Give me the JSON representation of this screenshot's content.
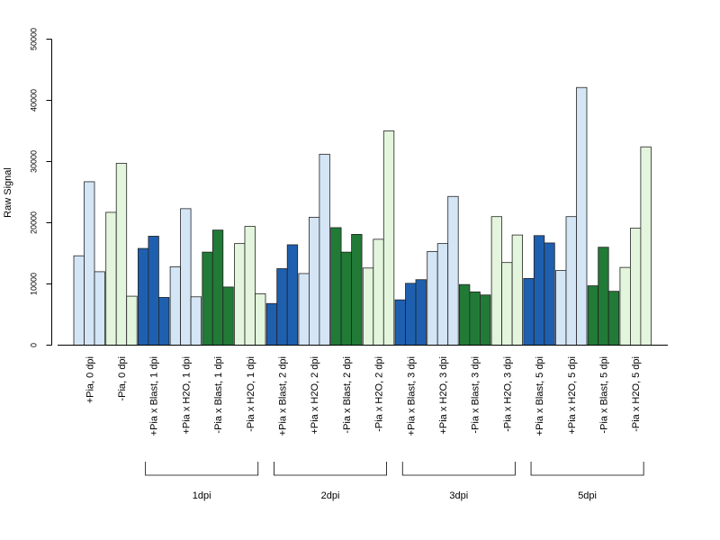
{
  "chart_data": {
    "type": "bar",
    "ylabel": "Raw Signal",
    "ylim": [
      0,
      50000
    ],
    "yticks": [
      "0",
      "10000",
      "20000",
      "30000",
      "40000",
      "50000"
    ],
    "grid": false,
    "categories": [
      "+Pia, 0 dpi",
      "-Pia, 0 dpi",
      "+Pia x Blast, 1 dpi",
      "+Pia x H2O, 1 dpi",
      "-Pia x Blast, 1 dpi",
      "-Pia x H2O, 1 dpi",
      "+Pia x Blast, 2 dpi",
      "+Pia x H2O, 2 dpi",
      "-Pia x Blast, 2 dpi",
      "-Pia x H2O, 2 dpi",
      "+Pia x Blast, 3 dpi",
      "+Pia x H2O, 3 dpi",
      "-Pia x Blast, 3 dpi",
      "-Pia x H2O, 3 dpi",
      "+Pia x Blast, 5 dpi",
      "+Pia x H2O, 5 dpi",
      "-Pia x Blast, 5 dpi",
      "-Pia x H2O, 5 dpi"
    ],
    "category_colors": [
      "#d4e5f5",
      "#e3f5dc",
      "#1f5faf",
      "#d4e5f5",
      "#217a36",
      "#e3f5dc",
      "#1f5faf",
      "#d4e5f5",
      "#217a36",
      "#e3f5dc",
      "#1f5faf",
      "#d4e5f5",
      "#217a36",
      "#e3f5dc",
      "#1f5faf",
      "#d4e5f5",
      "#217a36",
      "#e3f5dc"
    ],
    "values": [
      [
        14600,
        26700,
        12000
      ],
      [
        21700,
        29700,
        8000
      ],
      [
        15800,
        17800,
        7800
      ],
      [
        12800,
        22300,
        7900
      ],
      [
        15200,
        18800,
        9500
      ],
      [
        16600,
        19400,
        8400
      ],
      [
        6800,
        12500,
        16400
      ],
      [
        11700,
        20900,
        31200
      ],
      [
        19200,
        15200,
        18100
      ],
      [
        12600,
        17300,
        35000
      ],
      [
        7400,
        10100,
        10700
      ],
      [
        15300,
        16600,
        24300
      ],
      [
        9900,
        8700,
        8200
      ],
      [
        21000,
        13500,
        18000
      ],
      [
        10900,
        17900,
        16700
      ],
      [
        12200,
        21000,
        42100
      ],
      [
        9700,
        16000,
        8800
      ],
      [
        12700,
        19100,
        32400
      ]
    ],
    "groups": [
      {
        "label": "1dpi",
        "from": 2,
        "to": 5
      },
      {
        "label": "2dpi",
        "from": 6,
        "to": 9
      },
      {
        "label": "3dpi",
        "from": 10,
        "to": 13
      },
      {
        "label": "5dpi",
        "from": 14,
        "to": 17
      }
    ]
  }
}
